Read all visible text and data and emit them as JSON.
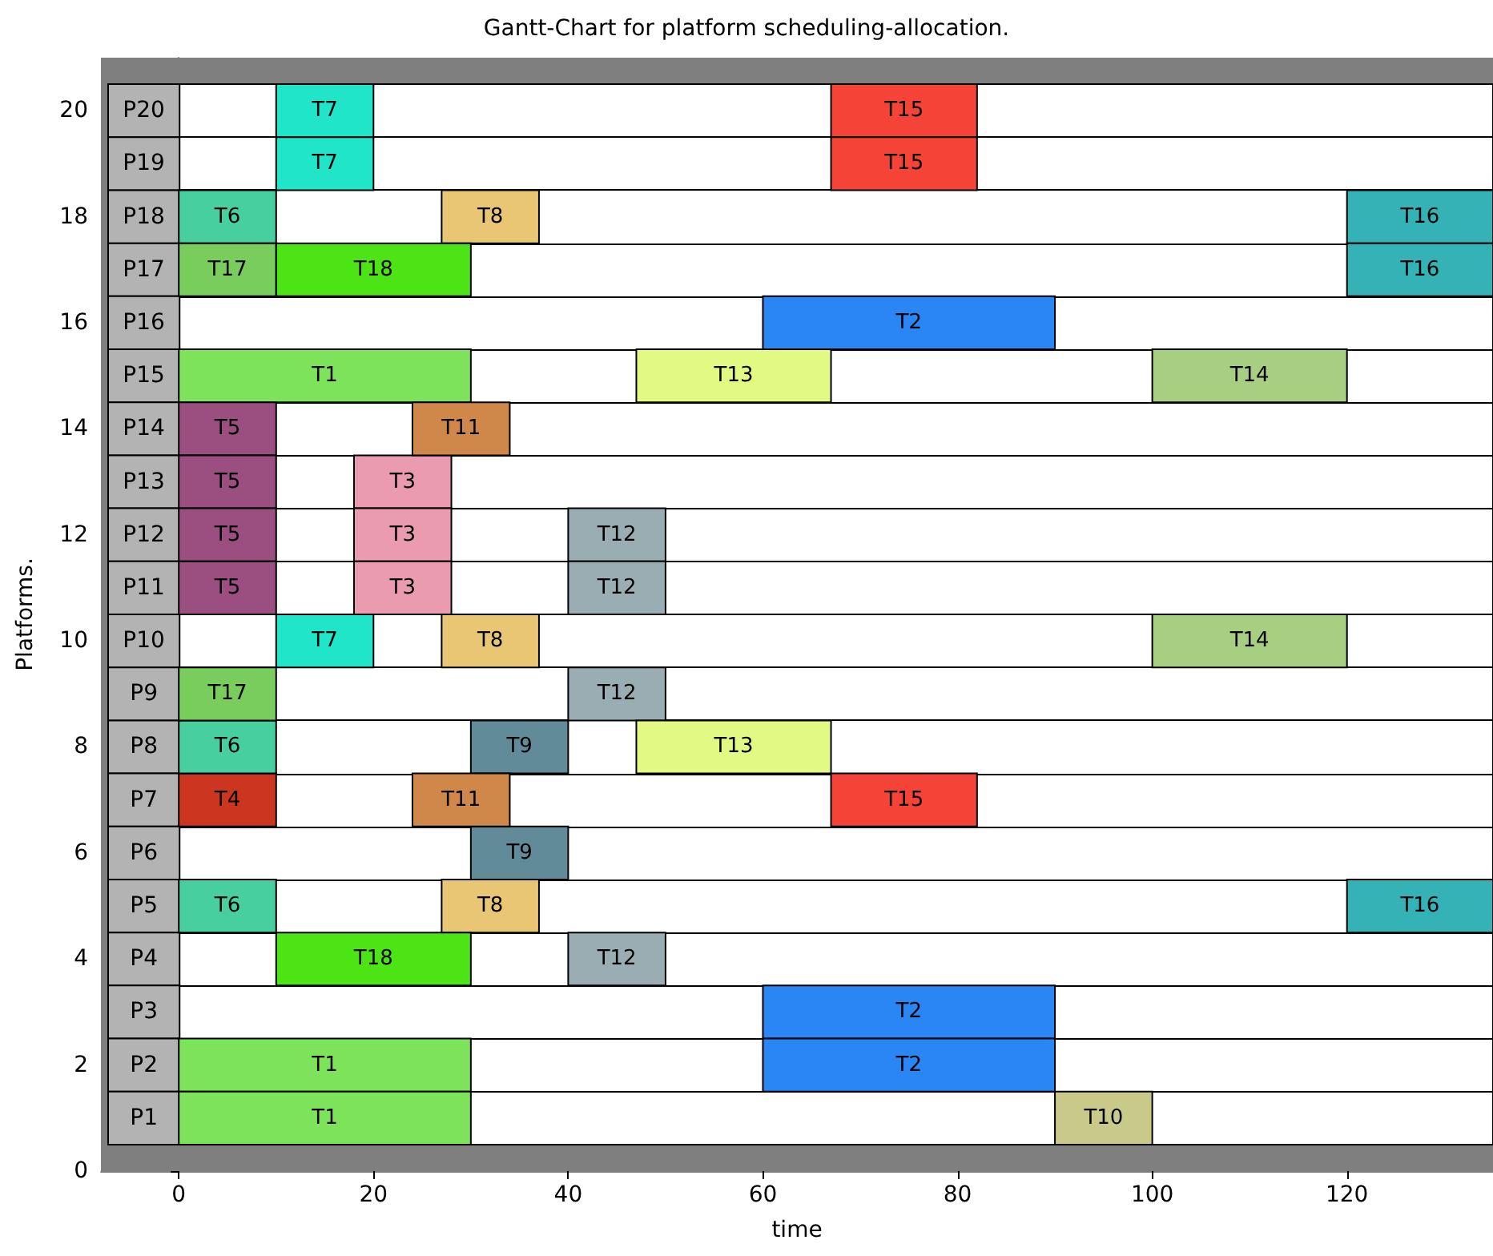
{
  "chart_data": {
    "type": "bar",
    "orientation": "horizontal",
    "title": "Gantt-Chart for platform scheduling-allocation.",
    "xlabel": "time",
    "y2label": "Platforms.",
    "categories": [
      "P20",
      "P19",
      "P18",
      "P17",
      "P16",
      "P15",
      "P14",
      "P13",
      "P12",
      "P11",
      "P10",
      "P9",
      "P8",
      "P7",
      "P6",
      "P5",
      "P4",
      "P3",
      "P2",
      "P1"
    ],
    "xlim": [
      -8,
      135
    ],
    "xticks": [
      0,
      20,
      40,
      60,
      80,
      100,
      120
    ],
    "y2lim": [
      0,
      21
    ],
    "y2ticks": [
      0,
      2,
      4,
      6,
      8,
      10,
      12,
      14,
      16,
      18,
      20
    ],
    "grid": "y",
    "series": [
      {
        "name": "T1",
        "color": "#7de35a",
        "values": [
          null,
          null,
          null,
          null,
          null,
          30,
          null,
          null,
          null,
          null,
          null,
          null,
          null,
          null,
          null,
          null,
          null,
          null,
          30,
          30
        ],
        "base": [
          null,
          null,
          null,
          null,
          null,
          0,
          null,
          null,
          null,
          null,
          null,
          null,
          null,
          null,
          null,
          null,
          null,
          null,
          0,
          0
        ]
      },
      {
        "name": "T2",
        "color": "#2a85f5",
        "values": [
          null,
          null,
          null,
          null,
          30,
          null,
          null,
          null,
          null,
          null,
          null,
          null,
          null,
          null,
          null,
          null,
          null,
          30,
          30,
          null
        ],
        "base": [
          null,
          null,
          null,
          null,
          60,
          null,
          null,
          null,
          null,
          null,
          null,
          null,
          null,
          null,
          null,
          null,
          null,
          60,
          60,
          null
        ]
      },
      {
        "name": "T3",
        "color": "#eb9bb0",
        "values": [
          null,
          null,
          null,
          null,
          null,
          null,
          null,
          10,
          10,
          10,
          null,
          null,
          null,
          null,
          null,
          null,
          null,
          null,
          null,
          null
        ],
        "base": [
          null,
          null,
          null,
          null,
          null,
          null,
          null,
          18,
          18,
          18,
          null,
          null,
          null,
          null,
          null,
          null,
          null,
          null,
          null,
          null
        ]
      },
      {
        "name": "T4",
        "color": "#cc3520",
        "values": [
          null,
          null,
          null,
          null,
          null,
          null,
          null,
          null,
          null,
          null,
          null,
          null,
          null,
          10,
          null,
          null,
          null,
          null,
          null,
          null
        ],
        "base": [
          null,
          null,
          null,
          null,
          null,
          null,
          null,
          null,
          null,
          null,
          null,
          null,
          null,
          0,
          null,
          null,
          null,
          null,
          null,
          null
        ]
      },
      {
        "name": "T5",
        "color": "#9a4f80",
        "values": [
          null,
          null,
          null,
          null,
          null,
          null,
          10,
          10,
          10,
          10,
          null,
          null,
          null,
          null,
          null,
          null,
          null,
          null,
          null,
          null
        ],
        "base": [
          null,
          null,
          null,
          null,
          null,
          null,
          0,
          0,
          0,
          0,
          null,
          null,
          null,
          null,
          null,
          null,
          null,
          null,
          null,
          null
        ]
      },
      {
        "name": "T6",
        "color": "#48cfa0",
        "values": [
          null,
          null,
          10,
          null,
          null,
          null,
          null,
          null,
          null,
          null,
          null,
          null,
          10,
          null,
          null,
          10,
          null,
          null,
          null,
          null
        ],
        "base": [
          null,
          null,
          0,
          null,
          null,
          null,
          null,
          null,
          null,
          null,
          null,
          null,
          0,
          null,
          null,
          0,
          null,
          null,
          null,
          null
        ]
      },
      {
        "name": "T7",
        "color": "#20e5c8",
        "values": [
          10,
          10,
          null,
          null,
          null,
          null,
          null,
          null,
          null,
          null,
          10,
          null,
          null,
          null,
          null,
          null,
          null,
          null,
          null,
          null
        ],
        "base": [
          10,
          10,
          null,
          null,
          null,
          null,
          null,
          null,
          null,
          null,
          10,
          null,
          null,
          null,
          null,
          null,
          null,
          null,
          null,
          null
        ]
      },
      {
        "name": "T8",
        "color": "#e8c674",
        "values": [
          null,
          null,
          10,
          null,
          null,
          null,
          null,
          null,
          null,
          null,
          10,
          null,
          null,
          null,
          null,
          10,
          null,
          null,
          null,
          null
        ],
        "base": [
          null,
          null,
          27,
          null,
          null,
          null,
          null,
          null,
          null,
          null,
          27,
          null,
          null,
          null,
          null,
          27,
          null,
          null,
          null,
          null
        ]
      },
      {
        "name": "T9",
        "color": "#628b9a",
        "values": [
          null,
          null,
          null,
          null,
          null,
          null,
          null,
          null,
          null,
          null,
          null,
          null,
          10,
          null,
          10,
          null,
          null,
          null,
          null,
          null
        ],
        "base": [
          null,
          null,
          null,
          null,
          null,
          null,
          null,
          null,
          null,
          null,
          null,
          null,
          30,
          null,
          30,
          null,
          null,
          null,
          null,
          null
        ]
      },
      {
        "name": "T10",
        "color": "#c9c98a",
        "values": [
          null,
          null,
          null,
          null,
          null,
          null,
          null,
          null,
          null,
          null,
          null,
          null,
          null,
          null,
          null,
          null,
          null,
          null,
          null,
          10
        ],
        "base": [
          null,
          null,
          null,
          null,
          null,
          null,
          null,
          null,
          null,
          null,
          null,
          null,
          null,
          null,
          null,
          null,
          null,
          null,
          null,
          90
        ]
      },
      {
        "name": "T11",
        "color": "#d0884a",
        "values": [
          null,
          null,
          null,
          null,
          null,
          null,
          10,
          null,
          null,
          null,
          null,
          null,
          null,
          10,
          null,
          null,
          null,
          null,
          null,
          null
        ],
        "base": [
          null,
          null,
          null,
          null,
          null,
          null,
          24,
          null,
          null,
          null,
          null,
          null,
          null,
          24,
          null,
          null,
          null,
          null,
          null,
          null
        ]
      },
      {
        "name": "T12",
        "color": "#9aadb2",
        "values": [
          null,
          null,
          null,
          null,
          null,
          null,
          null,
          null,
          10,
          10,
          null,
          10,
          null,
          null,
          null,
          null,
          10,
          null,
          null,
          null
        ],
        "base": [
          null,
          null,
          null,
          null,
          null,
          null,
          null,
          null,
          40,
          40,
          null,
          40,
          null,
          null,
          null,
          null,
          40,
          null,
          null,
          null
        ]
      },
      {
        "name": "T13",
        "color": "#e2fa84",
        "values": [
          null,
          null,
          null,
          null,
          null,
          20,
          null,
          null,
          null,
          null,
          null,
          null,
          20,
          null,
          null,
          null,
          null,
          null,
          null,
          null
        ],
        "base": [
          null,
          null,
          null,
          null,
          null,
          47,
          null,
          null,
          null,
          null,
          null,
          null,
          47,
          null,
          null,
          null,
          null,
          null,
          null,
          null
        ]
      },
      {
        "name": "T14",
        "color": "#a7cf81",
        "values": [
          null,
          null,
          null,
          null,
          null,
          20,
          null,
          null,
          null,
          null,
          20,
          null,
          null,
          null,
          null,
          null,
          null,
          null,
          null,
          null
        ],
        "base": [
          null,
          null,
          null,
          null,
          null,
          100,
          null,
          null,
          null,
          null,
          100,
          null,
          null,
          null,
          null,
          null,
          null,
          null,
          null,
          null
        ]
      },
      {
        "name": "T15",
        "color": "#f54337",
        "values": [
          15,
          15,
          null,
          null,
          null,
          null,
          null,
          null,
          null,
          null,
          null,
          null,
          null,
          15,
          null,
          null,
          null,
          null,
          null,
          null
        ],
        "base": [
          67,
          67,
          null,
          null,
          null,
          null,
          null,
          null,
          null,
          null,
          null,
          null,
          null,
          67,
          null,
          null,
          null,
          null,
          null,
          null
        ]
      },
      {
        "name": "T16",
        "color": "#34b2b6",
        "values": [
          null,
          null,
          15,
          15,
          null,
          null,
          null,
          null,
          null,
          null,
          null,
          null,
          null,
          null,
          null,
          15,
          null,
          null,
          null,
          null
        ],
        "base": [
          null,
          null,
          120,
          120,
          null,
          null,
          null,
          null,
          null,
          null,
          null,
          null,
          null,
          null,
          null,
          120,
          null,
          null,
          null,
          null
        ]
      },
      {
        "name": "T17",
        "color": "#78cd5c",
        "values": [
          null,
          null,
          null,
          10,
          null,
          null,
          null,
          null,
          null,
          null,
          null,
          10,
          null,
          null,
          null,
          null,
          null,
          null,
          null,
          null
        ],
        "base": [
          null,
          null,
          null,
          0,
          null,
          null,
          null,
          null,
          null,
          null,
          null,
          0,
          null,
          null,
          null,
          null,
          null,
          null,
          null,
          null
        ]
      },
      {
        "name": "T18",
        "color": "#4de415",
        "values": [
          null,
          null,
          null,
          20,
          null,
          null,
          null,
          null,
          null,
          null,
          null,
          null,
          null,
          null,
          null,
          null,
          20,
          null,
          null,
          null
        ],
        "base": [
          null,
          null,
          null,
          10,
          null,
          null,
          null,
          null,
          null,
          null,
          null,
          null,
          null,
          null,
          null,
          null,
          10,
          null,
          null,
          null
        ]
      }
    ]
  }
}
